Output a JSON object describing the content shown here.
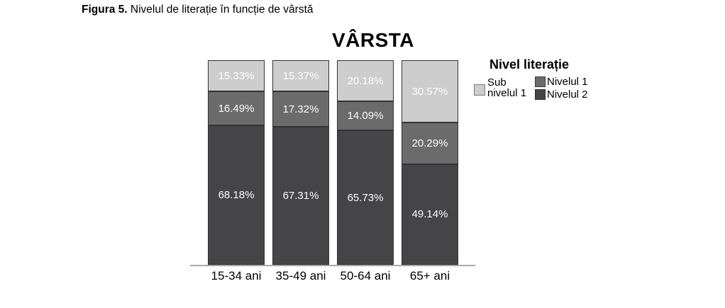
{
  "caption": {
    "label": "Figura 5.",
    "text": " Nivelul de literație în funcție de vârstă"
  },
  "legend": {
    "title": "Nivel literație",
    "items": [
      {
        "label": "Sub nivelul 1",
        "display": "Sub\nnivelul 1",
        "color": "#cdcdcd",
        "border": "#7a7a7a"
      },
      {
        "label": "Nivelul 1",
        "display": "Nivelul 1",
        "color": "#6b6b6b",
        "border": "#3c3c3e"
      },
      {
        "label": "Nivelul 2",
        "display": "Nivelul 2",
        "color": "#454548",
        "border": "#2e2e30"
      }
    ]
  },
  "chart_data": {
    "type": "bar",
    "stacked": true,
    "percent_stacked": true,
    "title": "VÂRSTA",
    "categories": [
      "15-34 ani",
      "35-49 ani",
      "50-64 ani",
      "65+ ani"
    ],
    "series": [
      {
        "name": "Sub nivelul 1",
        "color": "#cdcdcd",
        "values": [
          15.33,
          15.37,
          20.18,
          30.57
        ]
      },
      {
        "name": "Nivelul 1",
        "color": "#6b6b6b",
        "values": [
          16.49,
          17.32,
          14.09,
          20.29
        ]
      },
      {
        "name": "Nivelul 2",
        "color": "#454548",
        "values": [
          68.18,
          67.31,
          65.73,
          49.14
        ]
      }
    ],
    "value_labels": true,
    "value_label_suffix": "%",
    "ylim": [
      0,
      100
    ],
    "legend_title": "Nivel literație",
    "legend_position": "right",
    "grid": false
  }
}
